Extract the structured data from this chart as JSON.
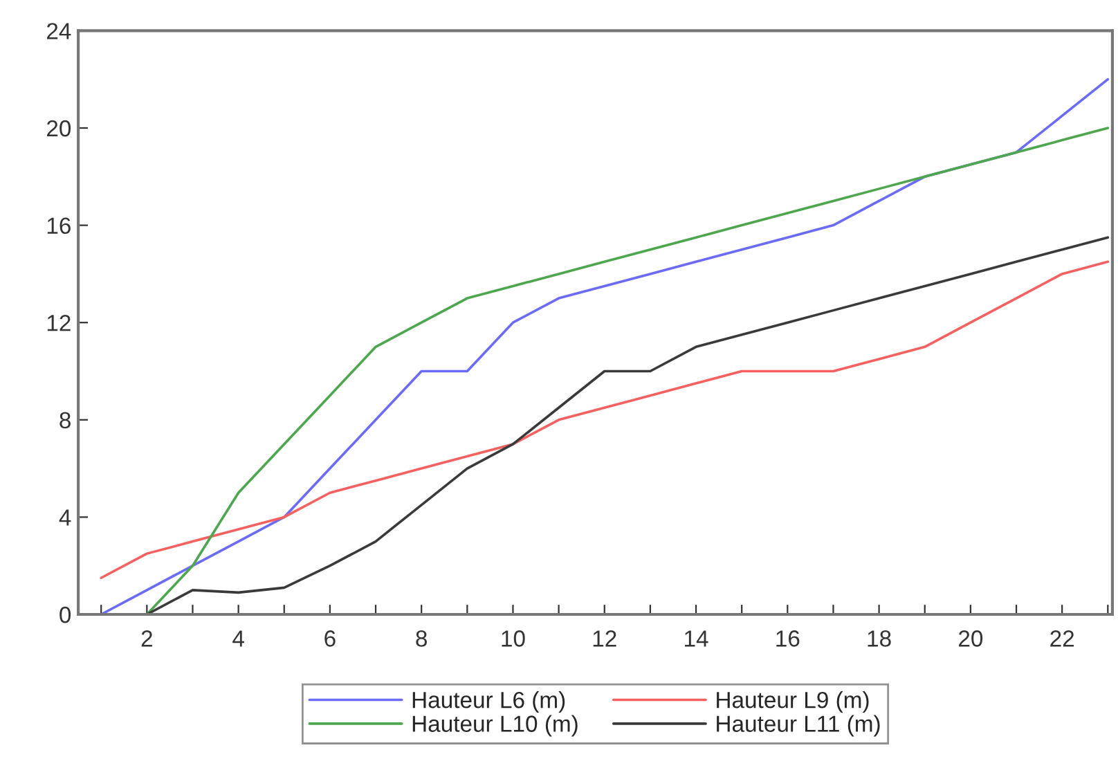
{
  "chart_data": {
    "type": "line",
    "x": [
      1,
      2,
      3,
      4,
      5,
      6,
      7,
      8,
      9,
      10,
      11,
      12,
      13,
      14,
      15,
      16,
      17,
      18,
      19,
      20,
      21,
      22,
      23
    ],
    "series": [
      {
        "name": "Hauteur L6 (m)",
        "color": "#6b6bf5",
        "values": [
          0,
          1,
          2,
          3,
          4,
          6,
          8,
          10,
          10,
          12,
          13,
          13.5,
          14,
          14.5,
          15,
          15.5,
          16,
          17,
          18,
          18.5,
          19,
          20.5,
          22
        ]
      },
      {
        "name": "Hauteur L9 (m)",
        "color": "#f56060",
        "values": [
          1.5,
          2.5,
          3,
          3.5,
          4,
          5,
          5.5,
          6,
          6.5,
          7,
          8,
          8.5,
          9,
          9.5,
          10,
          10,
          10,
          10.5,
          11,
          12,
          13,
          14,
          14.5
        ]
      },
      {
        "name": "Hauteur L10 (m)",
        "color": "#4ea64e",
        "values": [
          null,
          0,
          2,
          5,
          7,
          9,
          11,
          12,
          13,
          13.5,
          14,
          14.5,
          15,
          15.5,
          16,
          16.5,
          17,
          17.5,
          18,
          18.5,
          19,
          19.5,
          20
        ]
      },
      {
        "name": "Hauteur L11 (m)",
        "color": "#3a3a3a",
        "values": [
          null,
          0,
          1,
          0.9,
          1.1,
          2,
          3,
          4.5,
          6,
          7,
          8.5,
          10,
          10,
          11,
          11.5,
          12,
          12.5,
          13,
          13.5,
          14,
          14.5,
          15,
          15.5
        ]
      }
    ],
    "xlim": [
      0.5,
      23.1
    ],
    "xticks": [
      {
        "value": 1,
        "label": null
      },
      2,
      {
        "value": 3,
        "label": null
      },
      4,
      {
        "value": 5,
        "label": null
      },
      6,
      {
        "value": 7,
        "label": null
      },
      8,
      {
        "value": 9,
        "label": null
      },
      10,
      {
        "value": 11,
        "label": null
      },
      12,
      {
        "value": 13,
        "label": null
      },
      14,
      {
        "value": 15,
        "label": null
      },
      16,
      {
        "value": 17,
        "label": null
      },
      18,
      {
        "value": 19,
        "label": null
      },
      20,
      {
        "value": 21,
        "label": null
      },
      22,
      {
        "value": 23,
        "label": null
      }
    ],
    "ylim": [
      0,
      24
    ],
    "yticks": [
      0,
      4,
      8,
      12,
      16,
      20,
      24
    ],
    "grid": false,
    "legend": "bottom",
    "marker": "none",
    "line_style": "solid"
  }
}
